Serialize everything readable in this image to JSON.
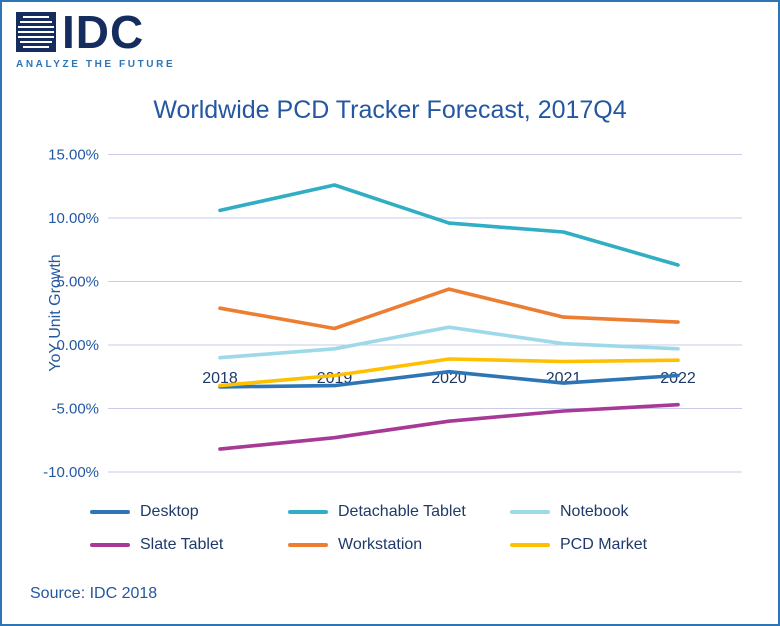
{
  "logo": {
    "name": "IDC",
    "tagline": "ANALYZE THE FUTURE"
  },
  "title": "Worldwide PCD Tracker Forecast, 2017Q4",
  "source": "Source: IDC 2018",
  "colors": {
    "border": "#2E75B6",
    "title": "#2457A0",
    "axis": "#2457A0",
    "navy_text": "#1F3A68",
    "grid": "#C9CBE8",
    "logo_navy": "#152C5E",
    "logo_blue": "#2E75B6"
  },
  "chart_data": {
    "type": "line",
    "title": "Worldwide PCD Tracker Forecast, 2017Q4",
    "xlabel": "",
    "ylabel": "YoY Unit Growth",
    "categories": [
      "2018",
      "2019",
      "2020",
      "2021",
      "2022"
    ],
    "y_ticks": [
      "15.00%",
      "10.00%",
      "5.00%",
      "0.00%",
      "-5.00%",
      "-10.00%"
    ],
    "y_tick_values": [
      15,
      10,
      5,
      0,
      -5,
      -10
    ],
    "ylim": [
      -10,
      15
    ],
    "grid": true,
    "legend_position": "bottom",
    "series": [
      {
        "name": "Desktop",
        "color": "#2E75B6",
        "values": [
          -3.3,
          -3.2,
          -2.1,
          -3.0,
          -2.4
        ]
      },
      {
        "name": "Detachable Tablet",
        "color": "#31AEC4",
        "values": [
          10.6,
          12.6,
          9.6,
          8.9,
          6.3
        ]
      },
      {
        "name": "Notebook",
        "color": "#9DD9E8",
        "values": [
          -1.0,
          -0.3,
          1.4,
          0.1,
          -0.3
        ]
      },
      {
        "name": "Slate Tablet",
        "color": "#A73A96",
        "values": [
          -8.2,
          -7.3,
          -6.0,
          -5.2,
          -4.7
        ]
      },
      {
        "name": "Workstation",
        "color": "#ED7D31",
        "values": [
          2.9,
          1.3,
          4.4,
          2.2,
          1.8
        ]
      },
      {
        "name": "PCD Market",
        "color": "#FFC000",
        "values": [
          -3.2,
          -2.4,
          -1.1,
          -1.3,
          -1.2
        ]
      }
    ]
  }
}
